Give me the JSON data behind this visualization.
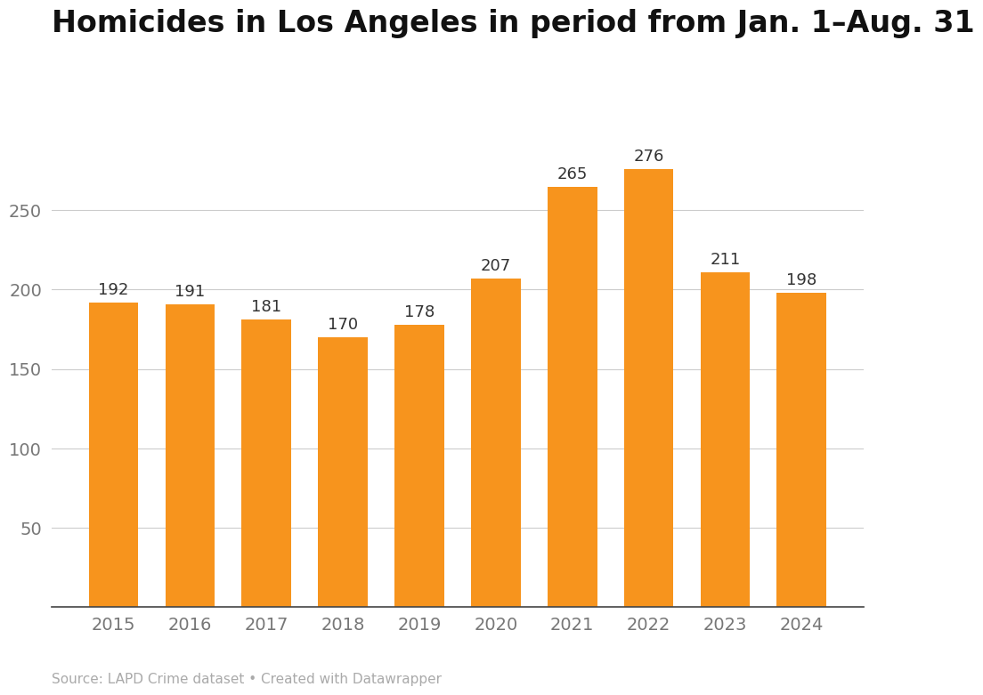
{
  "categories": [
    "2015",
    "2016",
    "2017",
    "2018",
    "2019",
    "2020",
    "2021",
    "2022",
    "2023",
    "2024"
  ],
  "values": [
    192,
    191,
    181,
    170,
    178,
    207,
    265,
    276,
    211,
    198
  ],
  "bar_color": "#F7941D",
  "title": "Homicides in Los Angeles in period from Jan. 1–Aug. 31",
  "source_text": "Source: LAPD Crime dataset • Created with Datawrapper",
  "ylim": [
    0,
    300
  ],
  "yticks": [
    50,
    100,
    150,
    200,
    250
  ],
  "background_color": "#ffffff",
  "title_fontsize": 24,
  "tick_fontsize": 14,
  "source_fontsize": 11,
  "bar_label_fontsize": 13,
  "bar_label_color": "#333333",
  "tick_color": "#777777",
  "grid_color": "#cccccc",
  "axis_color": "#444444"
}
